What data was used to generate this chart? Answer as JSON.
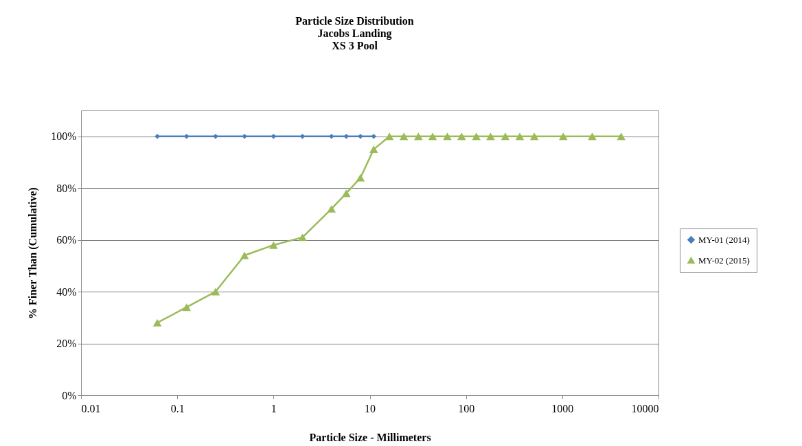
{
  "chart_data": {
    "type": "line",
    "title": "Particle Size Distribution",
    "subtitle": "Jacobs Landing\nXS 3 Pool",
    "xlabel": "Particle Size - Millimeters",
    "ylabel": "% Finer Than (Cumulative)",
    "log": "x",
    "grid": "y",
    "legend": "right",
    "line_style": "solid",
    "xlim": [
      0.01,
      10000
    ],
    "xticks": [
      0.01,
      0.1,
      1,
      10,
      100,
      1000,
      10000
    ],
    "ylim": [
      0,
      110
    ],
    "yticks": [
      {
        "value": 0,
        "label": "0%"
      },
      {
        "value": 20,
        "label": "20%"
      },
      {
        "value": 40,
        "label": "40%"
      },
      {
        "value": 60,
        "label": "60%"
      },
      {
        "value": 80,
        "label": "80%"
      },
      {
        "value": 100,
        "label": "100%"
      }
    ],
    "series": [
      {
        "name": "MY-01 (2014)",
        "color": "#4a7ebb",
        "marker": "diamond",
        "x": [
          0.062,
          0.125,
          0.25,
          0.5,
          1,
          2,
          4,
          5.7,
          8,
          11
        ],
        "values": [
          100,
          100,
          100,
          100,
          100,
          100,
          100,
          100,
          100,
          100
        ]
      },
      {
        "name": "MY-02 (2015)",
        "color": "#9bbb59",
        "marker": "triangle",
        "x": [
          0.062,
          0.125,
          0.25,
          0.5,
          1,
          2,
          4,
          5.7,
          8,
          11,
          16,
          22.6,
          32,
          45,
          64,
          90,
          128,
          180,
          256,
          362,
          512,
          1024,
          2048,
          4096
        ],
        "values": [
          28,
          34,
          40,
          54,
          58,
          61,
          72,
          78,
          84,
          95,
          100,
          100,
          100,
          100,
          100,
          100,
          100,
          100,
          100,
          100,
          100,
          100,
          100,
          100
        ]
      }
    ]
  }
}
